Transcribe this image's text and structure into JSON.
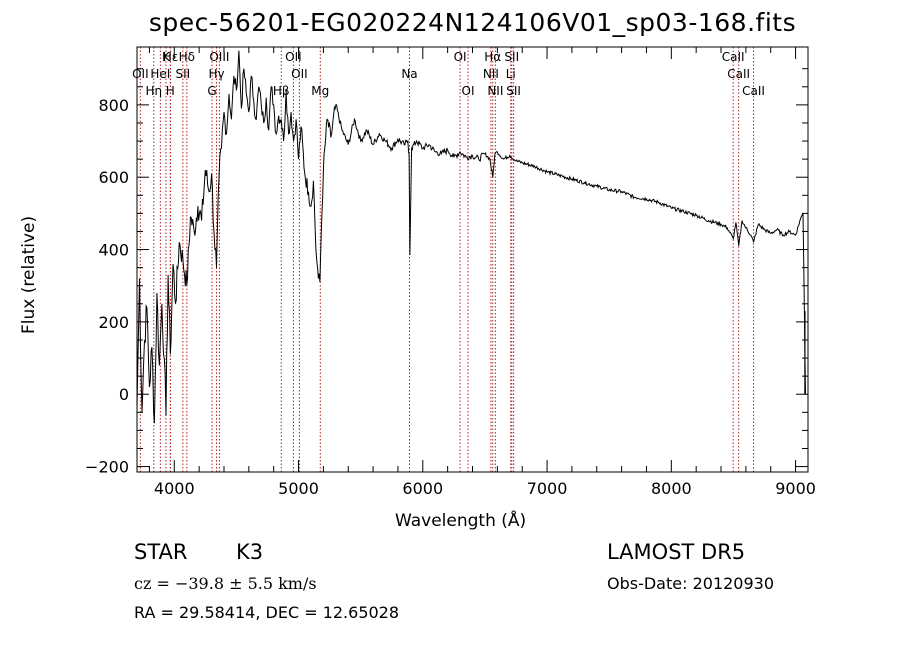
{
  "figure": {
    "title": "spec-56201-EG020224N124106V01_sp03-168.fits",
    "object_class": "STAR",
    "subclass": "K3",
    "cz_text": "cz = −39.8 ± 5.5 km/s",
    "radec_text": "RA =  29.58414, DEC =  12.65028",
    "survey": "LAMOST DR5",
    "obs_date": "Obs-Date: 20120930"
  },
  "chart_data": {
    "type": "line",
    "title": "spec-56201-EG020224N124106V01_sp03-168.fits",
    "xlabel": "Wavelength (Å)",
    "ylabel": "Flux (relative)",
    "xlim": [
      3700,
      9100
    ],
    "ylim": [
      -215,
      960
    ],
    "xticks": [
      4000,
      5000,
      6000,
      7000,
      8000,
      9000
    ],
    "yticks": [
      -200,
      0,
      200,
      400,
      600,
      800
    ],
    "grid": false,
    "series": [
      {
        "x": [
          3700,
          3720,
          3740,
          3760,
          3780,
          3800,
          3820,
          3840,
          3860,
          3880,
          3900,
          3920,
          3933,
          3950,
          3968,
          3990,
          4010,
          4040,
          4070,
          4101,
          4130,
          4160,
          4190,
          4220,
          4250,
          4280,
          4300,
          4320,
          4340,
          4360,
          4380,
          4400,
          4420,
          4440,
          4460,
          4480,
          4500,
          4520,
          4540,
          4560,
          4580,
          4600,
          4620,
          4640,
          4660,
          4680,
          4700,
          4720,
          4740,
          4760,
          4780,
          4800,
          4820,
          4840,
          4861,
          4880,
          4900,
          4920,
          4940,
          4960,
          4980,
          5000,
          5020,
          5050,
          5080,
          5100,
          5120,
          5140,
          5160,
          5172,
          5183,
          5200,
          5230,
          5260,
          5300,
          5350,
          5400,
          5450,
          5500,
          5550,
          5600,
          5650,
          5700,
          5750,
          5800,
          5850,
          5880,
          5890,
          5896,
          5910,
          5950,
          6000,
          6050,
          6100,
          6150,
          6200,
          6250,
          6300,
          6350,
          6400,
          6450,
          6500,
          6540,
          6563,
          6580,
          6600,
          6650,
          6700,
          6750,
          6800,
          6900,
          7000,
          7100,
          7200,
          7300,
          7400,
          7500,
          7600,
          7700,
          7800,
          7900,
          8000,
          8100,
          8200,
          8300,
          8400,
          8450,
          8498,
          8520,
          8542,
          8570,
          8600,
          8640,
          8662,
          8700,
          8750,
          8800,
          8850,
          8900,
          8950,
          9000,
          9040,
          9060,
          9080
        ],
        "y": [
          -40,
          320,
          -50,
          150,
          240,
          20,
          130,
          -80,
          280,
          80,
          250,
          100,
          -60,
          330,
          110,
          360,
          250,
          420,
          370,
          300,
          490,
          450,
          520,
          480,
          620,
          560,
          610,
          450,
          350,
          600,
          680,
          780,
          720,
          830,
          760,
          880,
          840,
          950,
          790,
          900,
          830,
          780,
          880,
          810,
          760,
          850,
          800,
          750,
          820,
          730,
          850,
          800,
          720,
          770,
          760,
          700,
          840,
          720,
          780,
          700,
          760,
          650,
          740,
          610,
          560,
          520,
          590,
          400,
          320,
          310,
          450,
          620,
          760,
          710,
          800,
          730,
          690,
          760,
          700,
          730,
          690,
          720,
          700,
          680,
          705,
          690,
          700,
          660,
          385,
          680,
          700,
          680,
          690,
          670,
          665,
          675,
          655,
          670,
          655,
          660,
          650,
          665,
          650,
          600,
          665,
          670,
          650,
          660,
          645,
          640,
          630,
          615,
          605,
          595,
          585,
          575,
          565,
          560,
          545,
          540,
          530,
          515,
          505,
          495,
          480,
          470,
          460,
          430,
          475,
          410,
          480,
          460,
          440,
          420,
          470,
          455,
          445,
          455,
          440,
          450,
          440,
          485,
          500,
          0
        ]
      }
    ],
    "annotations": [
      {
        "label": "Hδ",
        "x": 4101
      },
      {
        "label": "K",
        "x": 3933
      },
      {
        "label": "Hε",
        "x": 3970
      },
      {
        "label": "OII",
        "x": 3727
      },
      {
        "label": "HeI",
        "x": 3888
      },
      {
        "label": "SII",
        "x": 4069
      },
      {
        "label": "OIII",
        "x": 4363
      },
      {
        "label": "Hγ",
        "x": 4340
      },
      {
        "label": "G",
        "x": 4304
      },
      {
        "label": "Hη",
        "x": 3835
      },
      {
        "label": "H",
        "x": 3968
      },
      {
        "label": "OII",
        "x": 4959
      },
      {
        "label": "OII",
        "x": 5007
      },
      {
        "label": "Hβ",
        "x": 4861
      },
      {
        "label": "Mg",
        "x": 5175
      },
      {
        "label": "Na",
        "x": 5893
      },
      {
        "label": "OI",
        "x": 6300
      },
      {
        "label": "OI",
        "x": 6364
      },
      {
        "label": "Hα",
        "x": 6563
      },
      {
        "label": "NII",
        "x": 6548
      },
      {
        "label": "NII",
        "x": 6584
      },
      {
        "label": "SII",
        "x": 6716
      },
      {
        "label": "SII",
        "x": 6731
      },
      {
        "label": "Li",
        "x": 6708
      },
      {
        "label": "CaII",
        "x": 8498
      },
      {
        "label": "CaII",
        "x": 8542
      },
      {
        "label": "CaII",
        "x": 8662
      }
    ],
    "line_color": "#000000",
    "marker_color": "#b22222"
  }
}
